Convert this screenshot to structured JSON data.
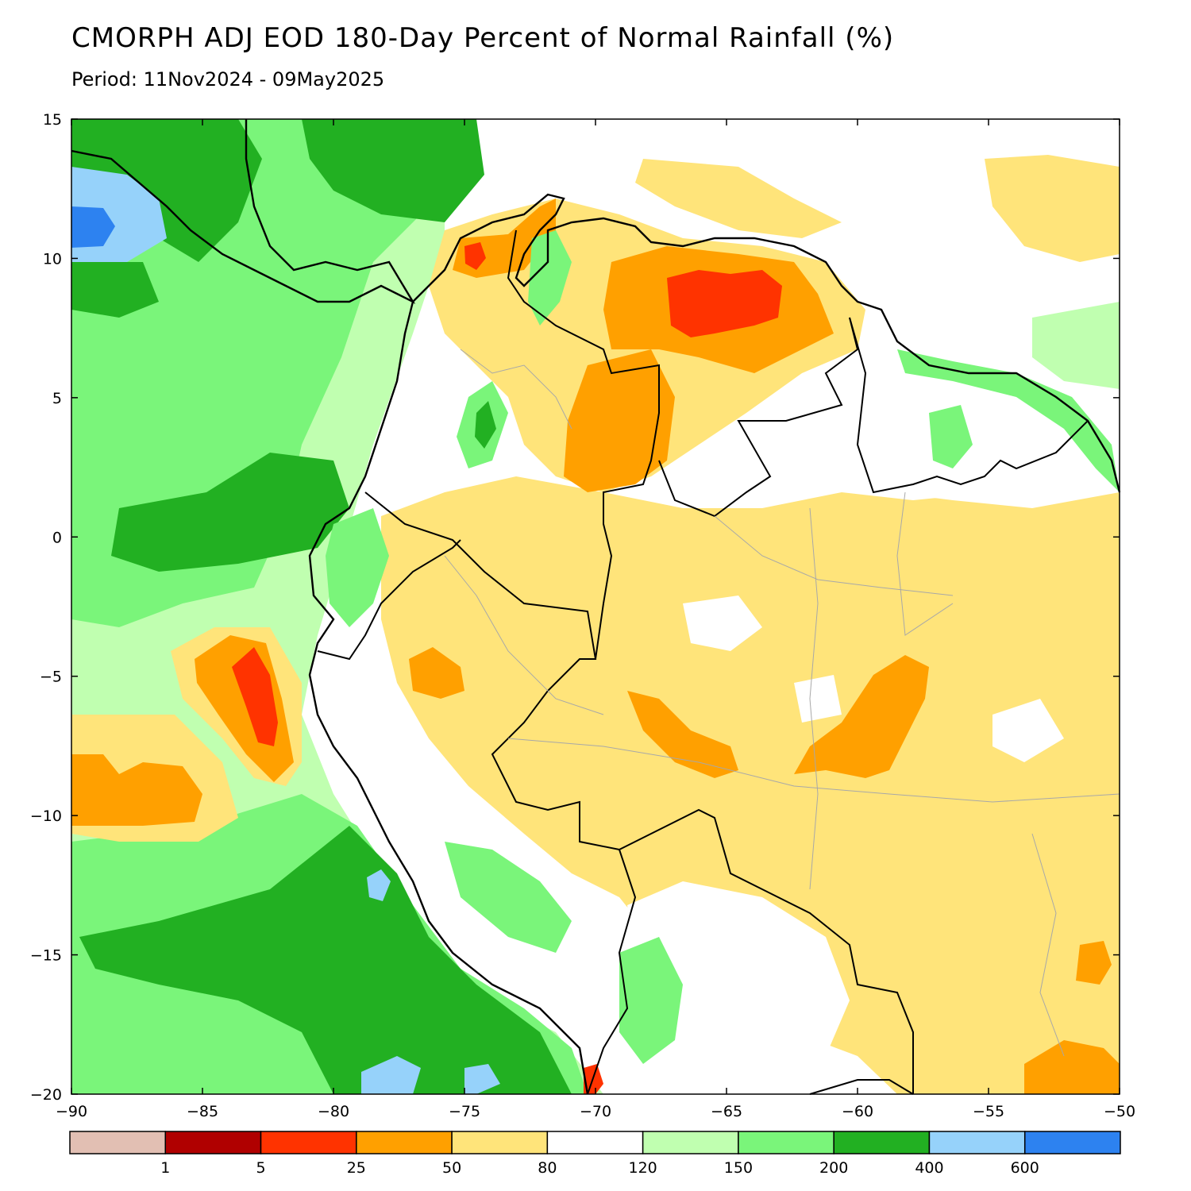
{
  "title": "CMORPH ADJ EOD 180-Day Percent of Normal Rainfall (%)",
  "subtitle": "Period: 11Nov2024 - 09May2025",
  "map": {
    "lon_range": [
      -90,
      -50
    ],
    "lat_range": [
      -20,
      15
    ],
    "lat_ticks": [
      {
        "value": 15,
        "label": "15"
      },
      {
        "value": 10,
        "label": "10"
      },
      {
        "value": 5,
        "label": "5"
      },
      {
        "value": 0,
        "label": "0"
      },
      {
        "value": -5,
        "label": "−5"
      },
      {
        "value": -10,
        "label": "−10"
      },
      {
        "value": -15,
        "label": "−15"
      },
      {
        "value": -20,
        "label": "−20"
      }
    ],
    "lon_ticks": [
      {
        "value": -90,
        "label": "−90"
      },
      {
        "value": -85,
        "label": "−85"
      },
      {
        "value": -80,
        "label": "−80"
      },
      {
        "value": -75,
        "label": "−75"
      },
      {
        "value": -70,
        "label": "−70"
      },
      {
        "value": -65,
        "label": "−65"
      },
      {
        "value": -60,
        "label": "−60"
      },
      {
        "value": -55,
        "label": "−55"
      },
      {
        "value": -50,
        "label": "−50"
      }
    ]
  },
  "colorbar": {
    "colors": [
      "#e2bfb3",
      "#b00000",
      "#ff3300",
      "#ffa000",
      "#ffe47a",
      "#ffffff",
      "#c0ffb0",
      "#7af57a",
      "#22b022",
      "#96d2fa",
      "#2d82f0"
    ],
    "labels": [
      "1",
      "5",
      "25",
      "50",
      "80",
      "120",
      "150",
      "200",
      "400",
      "600"
    ]
  }
}
